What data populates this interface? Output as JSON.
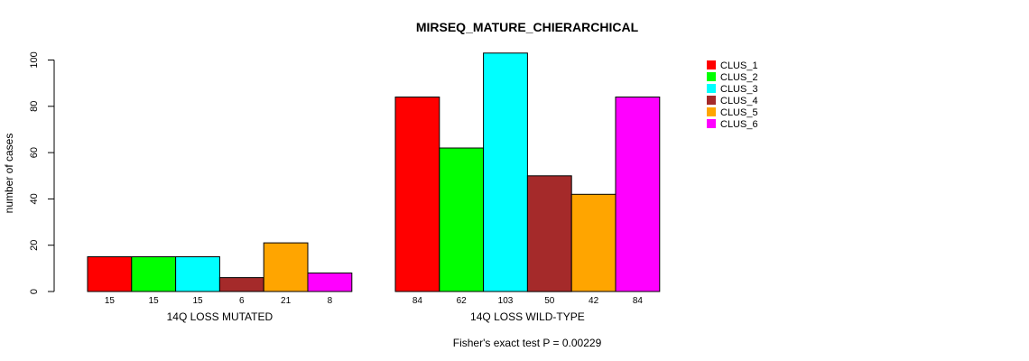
{
  "chart_data": {
    "type": "bar",
    "title": "MIRSEQ_MATURE_CHIERARCHICAL",
    "ylabel": "number of cases",
    "ylim": [
      0,
      100
    ],
    "yticks": [
      0,
      20,
      40,
      60,
      80,
      100
    ],
    "groups": [
      "14Q LOSS MUTATED",
      "14Q LOSS WILD-TYPE"
    ],
    "series": [
      {
        "name": "CLUS_1",
        "color": "#ff0000",
        "values": [
          15,
          84
        ]
      },
      {
        "name": "CLUS_2",
        "color": "#00ff00",
        "values": [
          15,
          62
        ]
      },
      {
        "name": "CLUS_3",
        "color": "#00ffff",
        "values": [
          15,
          103
        ]
      },
      {
        "name": "CLUS_4",
        "color": "#a52a2a",
        "values": [
          6,
          50
        ]
      },
      {
        "name": "CLUS_5",
        "color": "#ffa500",
        "values": [
          21,
          42
        ]
      },
      {
        "name": "CLUS_6",
        "color": "#ff00ff",
        "values": [
          8,
          84
        ]
      }
    ],
    "legend_position": "top-right",
    "footnote": "Fisher's exact test P = 0.00229"
  }
}
